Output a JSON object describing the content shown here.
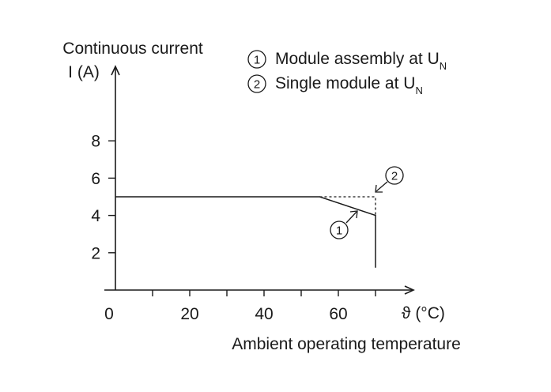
{
  "chart_data": {
    "type": "line",
    "ylabel_line1": "Continuous current",
    "ylabel_line2": "I (A)",
    "xlabel": "Ambient operating temperature",
    "x_axis_symbol": "ϑ (°C)",
    "xlim": [
      0,
      80
    ],
    "ylim": [
      0,
      10
    ],
    "xticks": [
      0,
      20,
      40,
      60
    ],
    "xticks_minor": [
      10,
      30,
      50,
      70
    ],
    "yticks": [
      2,
      4,
      6,
      8
    ],
    "legend_placement": "top-right",
    "series": [
      {
        "marker": "1",
        "name": "Module assembly at U",
        "subscript": "N",
        "style": "solid",
        "x": [
          0,
          55,
          70,
          70
        ],
        "y": [
          5,
          5,
          4,
          1.2
        ]
      },
      {
        "marker": "2",
        "name": "Single module at U",
        "subscript": "N",
        "style": "dashed",
        "x": [
          55,
          70,
          70
        ],
        "y": [
          5,
          5,
          4
        ]
      }
    ]
  }
}
